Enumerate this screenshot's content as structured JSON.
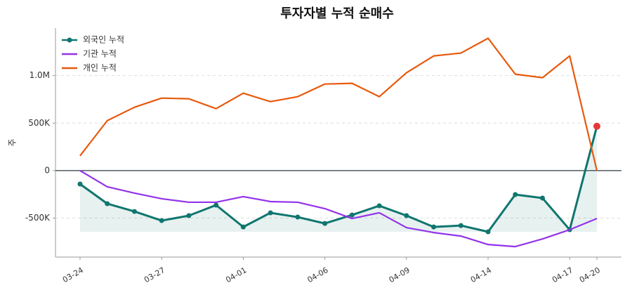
{
  "chart_data": {
    "type": "line",
    "title": "투자자별 누적 순매수",
    "y_label": "주",
    "categories": [
      "03-24",
      null,
      null,
      "03-27",
      null,
      null,
      "04-01",
      null,
      null,
      "04-06",
      null,
      null,
      "04-09",
      null,
      null,
      "04-14",
      null,
      null,
      "04-17",
      "04-20"
    ],
    "series": [
      {
        "name": "외국인 누적",
        "color": "#0f766e",
        "marker": true,
        "area": true,
        "highlight_last_color": "#e53935",
        "values": [
          -141000,
          -348000,
          -430000,
          -526000,
          -474000,
          -363000,
          -593000,
          -444000,
          -489000,
          -556000,
          -467000,
          -370000,
          -474000,
          -593000,
          -578000,
          -644000,
          -252000,
          -289000,
          -622000,
          467000
        ]
      },
      {
        "name": "기관 누적",
        "color": "#9333ea",
        "values": [
          0,
          -170000,
          -237000,
          -296000,
          -333000,
          -333000,
          -274000,
          -326000,
          -333000,
          -400000,
          -504000,
          -444000,
          -600000,
          -652000,
          -689000,
          -778000,
          -800000,
          -719000,
          -622000,
          -504000
        ]
      },
      {
        "name": "개인 누적",
        "color": "#e8590c",
        "values": [
          156000,
          526000,
          667000,
          763000,
          756000,
          652000,
          815000,
          726000,
          778000,
          911000,
          919000,
          778000,
          1030000,
          1207000,
          1237000,
          1393000,
          1015000,
          978000,
          1207000,
          0
        ]
      }
    ],
    "ylim": [
      -910000,
      1500000
    ],
    "yticks": [
      {
        "value": -500000,
        "label": "-500K"
      },
      0,
      {
        "value": 500000,
        "label": "500K"
      },
      {
        "value": 1000000,
        "label": "1.0M"
      }
    ],
    "grid": true,
    "legend": "upper-left"
  }
}
